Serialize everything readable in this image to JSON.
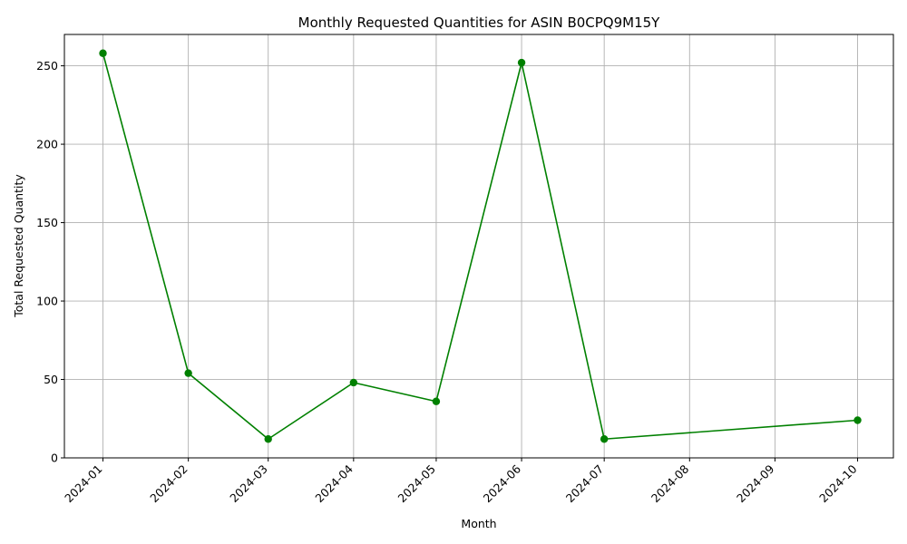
{
  "chart_data": {
    "type": "line",
    "title": "Monthly Requested Quantities for ASIN B0CPQ9M15Y",
    "xlabel": "Month",
    "ylabel": "Total Requested Quantity",
    "x_tick_labels": [
      "2024-01",
      "2024-02",
      "2024-03",
      "2024-04",
      "2024-05",
      "2024-06",
      "2024-07",
      "2024-08",
      "2024-09",
      "2024-10"
    ],
    "y_ticks": [
      0,
      50,
      100,
      150,
      200,
      250
    ],
    "ylim": [
      0,
      270
    ],
    "xlim": [
      "2023-12-18",
      "2024-10-14"
    ],
    "grid": true,
    "series": [
      {
        "color": "#008000",
        "marker": "circle",
        "x": [
          "2024-01-01",
          "2024-02-01",
          "2024-03-01",
          "2024-04-01",
          "2024-05-01",
          "2024-06-01",
          "2024-07-01",
          "2024-10-01"
        ],
        "y": [
          258,
          54,
          12,
          48,
          36,
          252,
          12,
          24
        ]
      }
    ]
  }
}
